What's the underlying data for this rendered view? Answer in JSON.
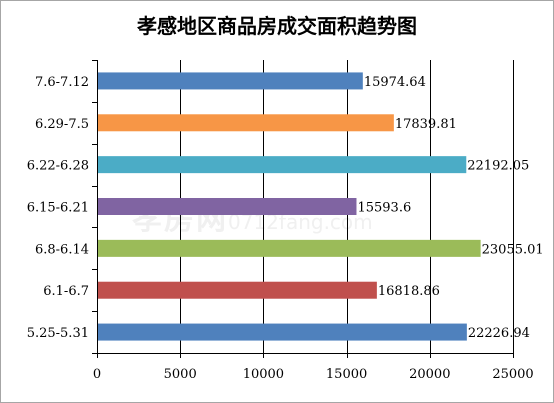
{
  "chart_data": {
    "type": "bar",
    "orientation": "horizontal",
    "title": "孝感地区商品房成交面积趋势图",
    "categories": [
      "7.6-7.12",
      "6.29-7.5",
      "6.22-6.28",
      "6.15-6.21",
      "6.8-6.14",
      "6.1-6.7",
      "5.25-5.31"
    ],
    "values": [
      15974.64,
      17839.81,
      22192.05,
      15593.6,
      23055.01,
      16818.86,
      22226.94
    ],
    "value_labels": [
      "15974.64",
      "17839.81",
      "22192.05",
      "15593.6",
      "23055.01",
      "16818.86",
      "22226.94"
    ],
    "colors": [
      "#4f81bd",
      "#f79646",
      "#4bacc6",
      "#8064a2",
      "#9bbb59",
      "#c0504d",
      "#4f81bd"
    ],
    "xlim": [
      0,
      25000
    ],
    "xticks": [
      0,
      5000,
      10000,
      15000,
      20000,
      25000
    ],
    "xlabel": "",
    "ylabel": "",
    "grid": "vertical",
    "legend": "none"
  },
  "watermark": {
    "brand": "孝房网",
    "url": "0712fang.com"
  }
}
